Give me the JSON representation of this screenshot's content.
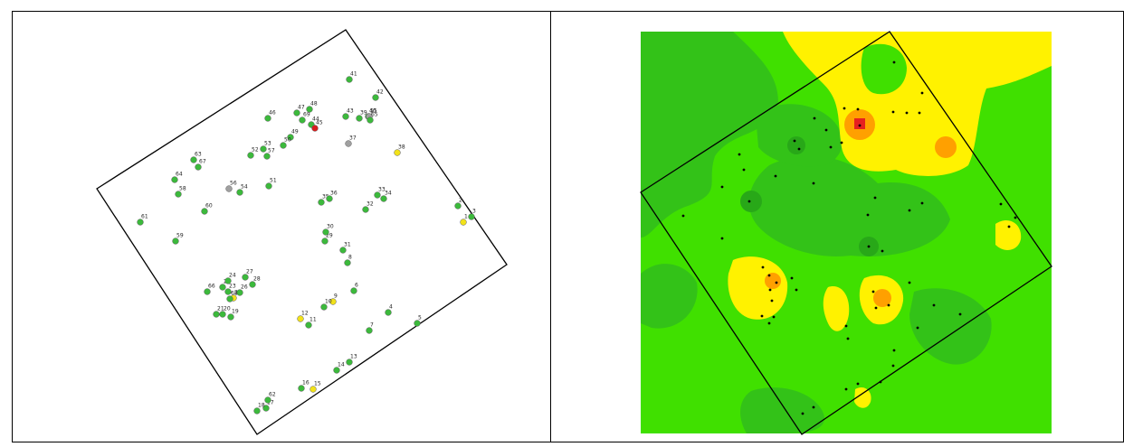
{
  "colors": {
    "green_point": "#3cb93c",
    "yellow_point": "#f2e21a",
    "red_point": "#d81e1e",
    "grey_point": "#a0a0a0",
    "base_green": "#40e000",
    "dark_green": "#33c218",
    "darker_green": "#28a818",
    "yellow_zone": "#fff200",
    "orange_zone": "#ffa000",
    "red_zone": "#e62020",
    "boundary": "#000000"
  },
  "left_map": {
    "sites": [
      {
        "label": "1",
        "status": "yellow"
      },
      {
        "label": "2",
        "status": "green"
      },
      {
        "label": "3",
        "status": "green"
      },
      {
        "label": "4",
        "status": "green"
      },
      {
        "label": "5",
        "status": "green"
      },
      {
        "label": "6",
        "status": "green"
      },
      {
        "label": "7",
        "status": "green"
      },
      {
        "label": "8",
        "status": "green"
      },
      {
        "label": "9",
        "status": "yellow"
      },
      {
        "label": "10",
        "status": "green"
      },
      {
        "label": "11",
        "status": "green"
      },
      {
        "label": "12",
        "status": "yellow"
      },
      {
        "label": "13",
        "status": "green"
      },
      {
        "label": "14",
        "status": "green"
      },
      {
        "label": "15",
        "status": "yellow"
      },
      {
        "label": "16",
        "status": "green"
      },
      {
        "label": "17",
        "status": "green"
      },
      {
        "label": "18",
        "status": "green"
      },
      {
        "label": "19",
        "status": "green"
      },
      {
        "label": "20",
        "status": "green"
      },
      {
        "label": "21",
        "status": "green"
      },
      {
        "label": "22",
        "status": "green"
      },
      {
        "label": "23",
        "status": "green"
      },
      {
        "label": "24",
        "status": "green"
      },
      {
        "label": "25",
        "status": "yellow"
      },
      {
        "label": "26",
        "status": "green"
      },
      {
        "label": "27",
        "status": "green"
      },
      {
        "label": "28",
        "status": "green"
      },
      {
        "label": "29",
        "status": "green"
      },
      {
        "label": "30",
        "status": "green"
      },
      {
        "label": "31",
        "status": "green"
      },
      {
        "label": "32",
        "status": "green"
      },
      {
        "label": "33",
        "status": "green"
      },
      {
        "label": "34",
        "status": "green"
      },
      {
        "label": "35",
        "status": "green"
      },
      {
        "label": "36",
        "status": "green"
      },
      {
        "label": "37",
        "status": "grey"
      },
      {
        "label": "38",
        "status": "yellow"
      },
      {
        "label": "39",
        "status": "green"
      },
      {
        "label": "40",
        "status": "green"
      },
      {
        "label": "41",
        "status": "green"
      },
      {
        "label": "42",
        "status": "green"
      },
      {
        "label": "43",
        "status": "green"
      },
      {
        "label": "44",
        "status": "green"
      },
      {
        "label": "45",
        "status": "red"
      },
      {
        "label": "46",
        "status": "green"
      },
      {
        "label": "47",
        "status": "green"
      },
      {
        "label": "48",
        "status": "green"
      },
      {
        "label": "49",
        "status": "green"
      },
      {
        "label": "50",
        "status": "green"
      },
      {
        "label": "51",
        "status": "green"
      },
      {
        "label": "52",
        "status": "green"
      },
      {
        "label": "53",
        "status": "green"
      },
      {
        "label": "54",
        "status": "green"
      },
      {
        "label": "55",
        "status": "grey"
      },
      {
        "label": "56",
        "status": "grey"
      },
      {
        "label": "57",
        "status": "green"
      },
      {
        "label": "58",
        "status": "green"
      },
      {
        "label": "59",
        "status": "green"
      },
      {
        "label": "60",
        "status": "green"
      },
      {
        "label": "61",
        "status": "green"
      },
      {
        "label": "62",
        "status": "green"
      },
      {
        "label": "63",
        "status": "green"
      },
      {
        "label": "64",
        "status": "green"
      },
      {
        "label": "65",
        "status": "green"
      },
      {
        "label": "66",
        "status": "green"
      },
      {
        "label": "67",
        "status": "green"
      },
      {
        "label": "68",
        "status": "green"
      },
      {
        "label": "69",
        "status": "green"
      }
    ]
  },
  "right_map": {
    "legend_hidden": true
  }
}
